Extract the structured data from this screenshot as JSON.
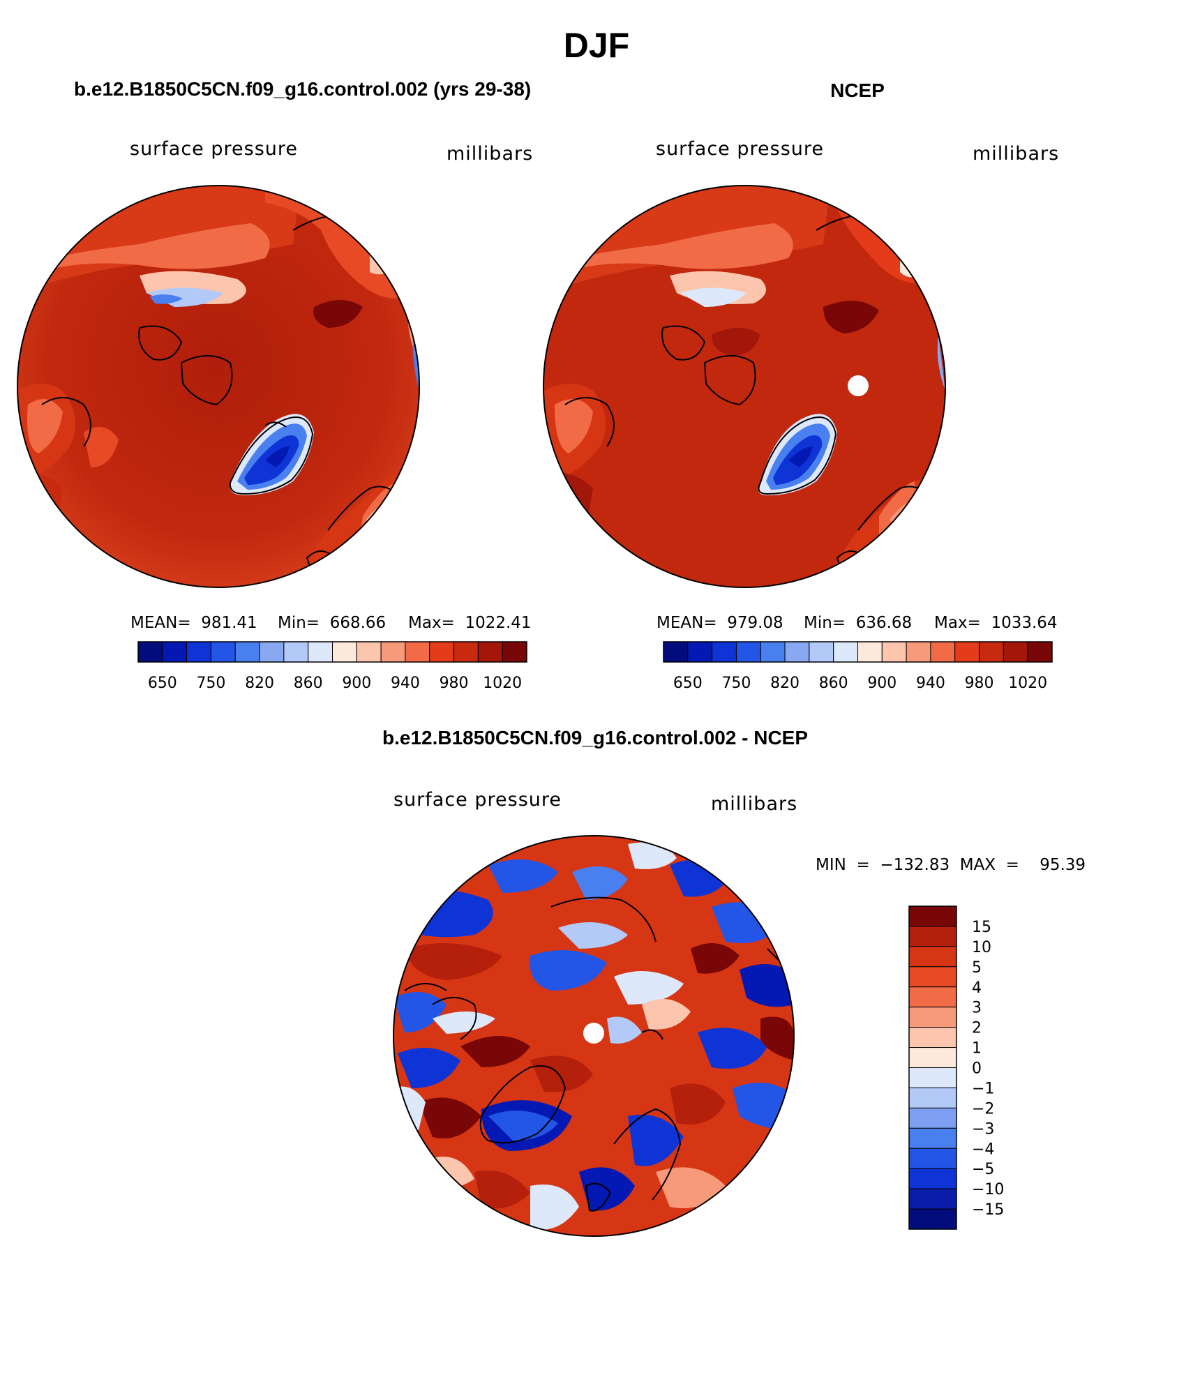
{
  "title": "DJF",
  "colors": {
    "abs_scale": [
      "#020c7c",
      "#0419b3",
      "#0f34d6",
      "#2356e6",
      "#4a7ff0",
      "#88a8f2",
      "#b3c9f8",
      "#dde8fb",
      "#fde8dc",
      "#fbc5ae",
      "#f79a79",
      "#f26b47",
      "#e43c1a",
      "#c72a0e",
      "#a3170a",
      "#7a0707"
    ],
    "diff_scale": [
      "#020c7c",
      "#0a1da8",
      "#0f34d6",
      "#2356e6",
      "#4a7ff0",
      "#7fa0f2",
      "#b3c9f8",
      "#dde8fb",
      "#fde8dc",
      "#fbc5ae",
      "#f79a79",
      "#f26b47",
      "#e84a26",
      "#d73614",
      "#b4200c",
      "#7a0707"
    ]
  },
  "panels": {
    "model": {
      "title": "b.e12.B1850C5CN.f09_g16.control.002 (yrs 29-38)",
      "left_label": "surface pressure",
      "right_label": "millibars",
      "stats": {
        "mean": "MEAN=  981.41",
        "min": "Min=  668.66",
        "max": "Max=  1022.41"
      },
      "colorbar_labels": [
        "650",
        "750",
        "820",
        "860",
        "900",
        "940",
        "980",
        "1020"
      ]
    },
    "obs": {
      "title": "NCEP",
      "left_label": "surface pressure",
      "right_label": "millibars",
      "stats": {
        "mean": "MEAN=  979.08",
        "min": "Min=  636.68",
        "max": "Max=  1033.64"
      },
      "colorbar_labels": [
        "650",
        "750",
        "820",
        "860",
        "900",
        "940",
        "980",
        "1020"
      ]
    },
    "diff": {
      "title": "b.e12.B1850C5CN.f09_g16.control.002 - NCEP",
      "left_label": "surface pressure",
      "right_label": "millibars",
      "minmax": "MIN  =  −132.83  MAX  =    95.39",
      "colorbar_labels": [
        "15",
        "10",
        "5",
        "4",
        "3",
        "2",
        "1",
        "0",
        "−1",
        "−2",
        "−3",
        "−4",
        "−5",
        "−10",
        "−15"
      ]
    }
  }
}
